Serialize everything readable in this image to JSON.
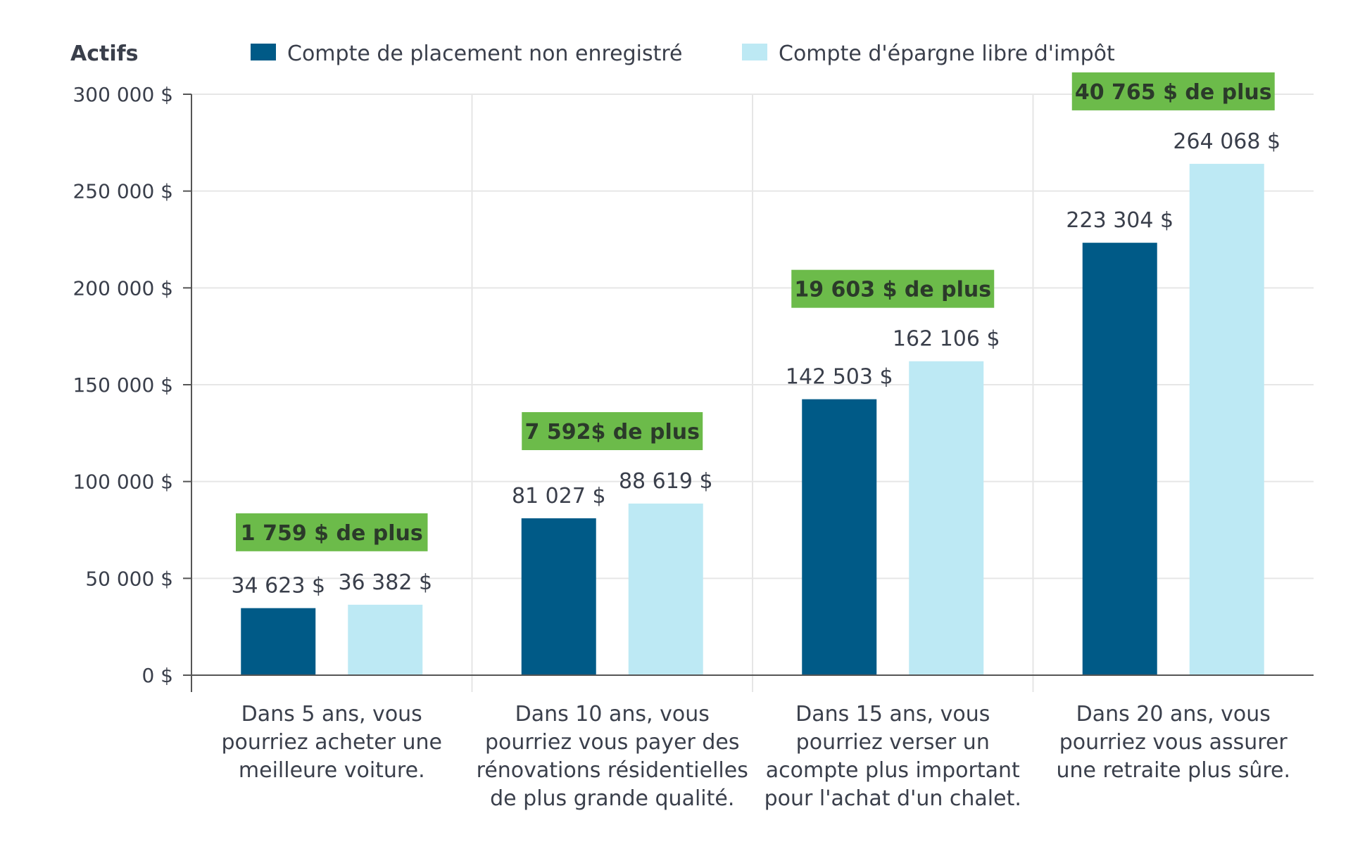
{
  "chart_data": {
    "type": "bar",
    "ylabel": "Actifs",
    "ylim": [
      0,
      300000
    ],
    "yticks": [
      "0 $",
      "50 000 $",
      "100 000 $",
      "150 000 $",
      "200 000 $",
      "250 000 $",
      "300 000 $"
    ],
    "grid": true,
    "legend_position": "top",
    "categories": [
      [
        "Dans 5 ans, vous",
        "pourriez acheter une",
        "meilleure voiture."
      ],
      [
        "Dans 10 ans, vous",
        "pourriez vous payer des",
        "rénovations résidentielles",
        "de plus grande qualité."
      ],
      [
        "Dans 15 ans, vous",
        "pourriez verser un",
        "acompte plus important",
        "pour l'achat d'un chalet."
      ],
      [
        "Dans 20 ans, vous",
        "pourriez vous assurer",
        "une retraite plus sûre."
      ]
    ],
    "series": [
      {
        "name": "Compte de placement non enregistré",
        "color": "#005a87",
        "values": [
          34623,
          81027,
          142503,
          223304
        ],
        "labels": [
          "34 623 $",
          "81 027 $",
          "142 503 $",
          "223 304 $"
        ]
      },
      {
        "name": "Compte d'épargne libre d'impôt",
        "color": "#bde9f4",
        "values": [
          36382,
          88619,
          162106,
          264068
        ],
        "labels": [
          "36 382 $",
          "88 619 $",
          "162 106 $",
          "264 068 $"
        ]
      }
    ],
    "differences": {
      "color": "#6cbb4a",
      "values": [
        1759,
        7592,
        19603,
        40765
      ],
      "labels": [
        "1 759 $ de plus",
        "7 592$ de plus",
        "19 603 $ de plus",
        "40 765 $ de plus"
      ]
    }
  }
}
